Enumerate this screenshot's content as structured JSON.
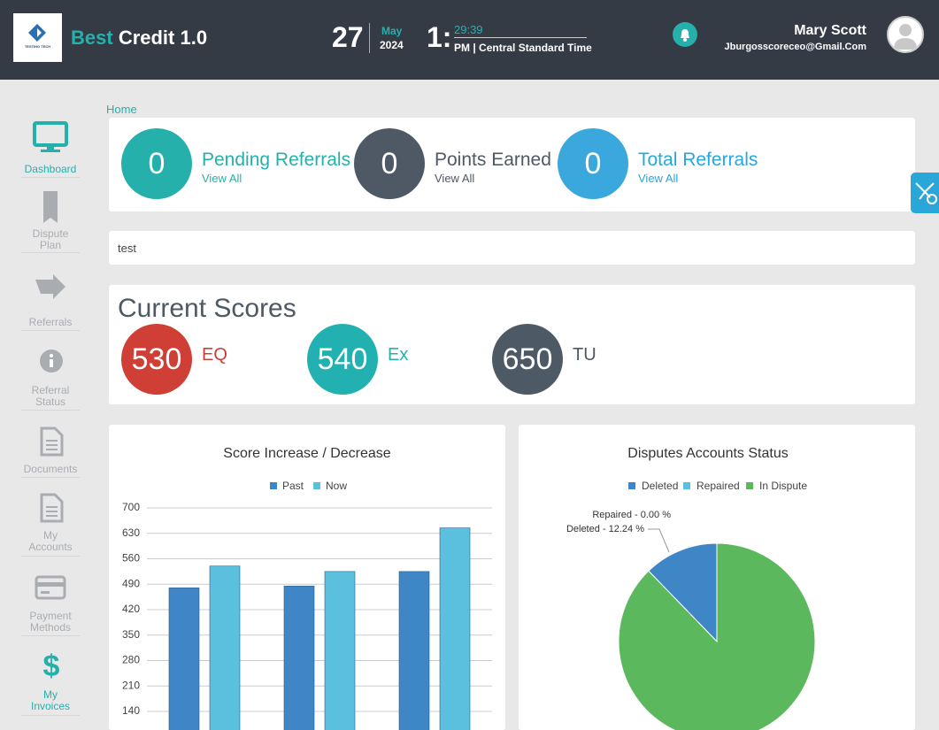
{
  "header": {
    "logo_text": "TESTING TECH",
    "brand_accent": "Best",
    "brand_rest": "Credit 1.0",
    "day": "27",
    "month": "May",
    "year": "2024",
    "hour": "1:",
    "minutes": "29:39",
    "zone": "PM | Central Standard Time",
    "user_name": "Mary Scott",
    "user_email": "Jburgosscoreceo@Gmail.Com"
  },
  "sidebar": [
    "Dashboard",
    "Dispute Plan",
    "Referrals",
    "Referral Status",
    "Documents",
    "My Accounts",
    "Payment Methods",
    "My Invoices"
  ],
  "breadcrumb": "Home",
  "stats": [
    {
      "value": 0,
      "label": "Pending Referrals",
      "link": "View All"
    },
    {
      "value": 0,
      "label": "Points Earned",
      "link": "View All"
    },
    {
      "value": 0,
      "label": "Total Referrals",
      "link": "View All"
    }
  ],
  "note": "test",
  "scores": {
    "title": "Current Scores",
    "items": [
      {
        "value": 530,
        "label": "EQ",
        "color": "#cf3f36"
      },
      {
        "value": 540,
        "label": "Ex",
        "color": "#22b1b0"
      },
      {
        "value": 650,
        "label": "TU",
        "color": "#4e5966"
      }
    ]
  },
  "chart_data": [
    {
      "type": "bar",
      "title": "Score Increase / Decrease",
      "categories": [
        null,
        null,
        null
      ],
      "series": [
        {
          "name": "Past",
          "color": "#3f86c7",
          "values": [
            480,
            485,
            525
          ]
        },
        {
          "name": "Now",
          "color": "#5bc0de",
          "values": [
            540,
            525,
            645
          ]
        }
      ],
      "ylim": [
        0,
        700
      ],
      "yticks": [
        140,
        210,
        280,
        350,
        420,
        490,
        560,
        630,
        700
      ],
      "grid": true,
      "legend": "top"
    },
    {
      "type": "pie",
      "title": "Disputes Accounts Status",
      "categories": [
        "Deleted",
        "Repaired",
        "In Dispute"
      ],
      "values": [
        12.24,
        0,
        87.76
      ],
      "value_labels": [
        "Deleted - 12.24 %",
        "Repaired - 0.00 %",
        null
      ],
      "colors": [
        "#3f86c7",
        "#5bc0de",
        "#5cb85c"
      ],
      "legend": "top"
    }
  ]
}
